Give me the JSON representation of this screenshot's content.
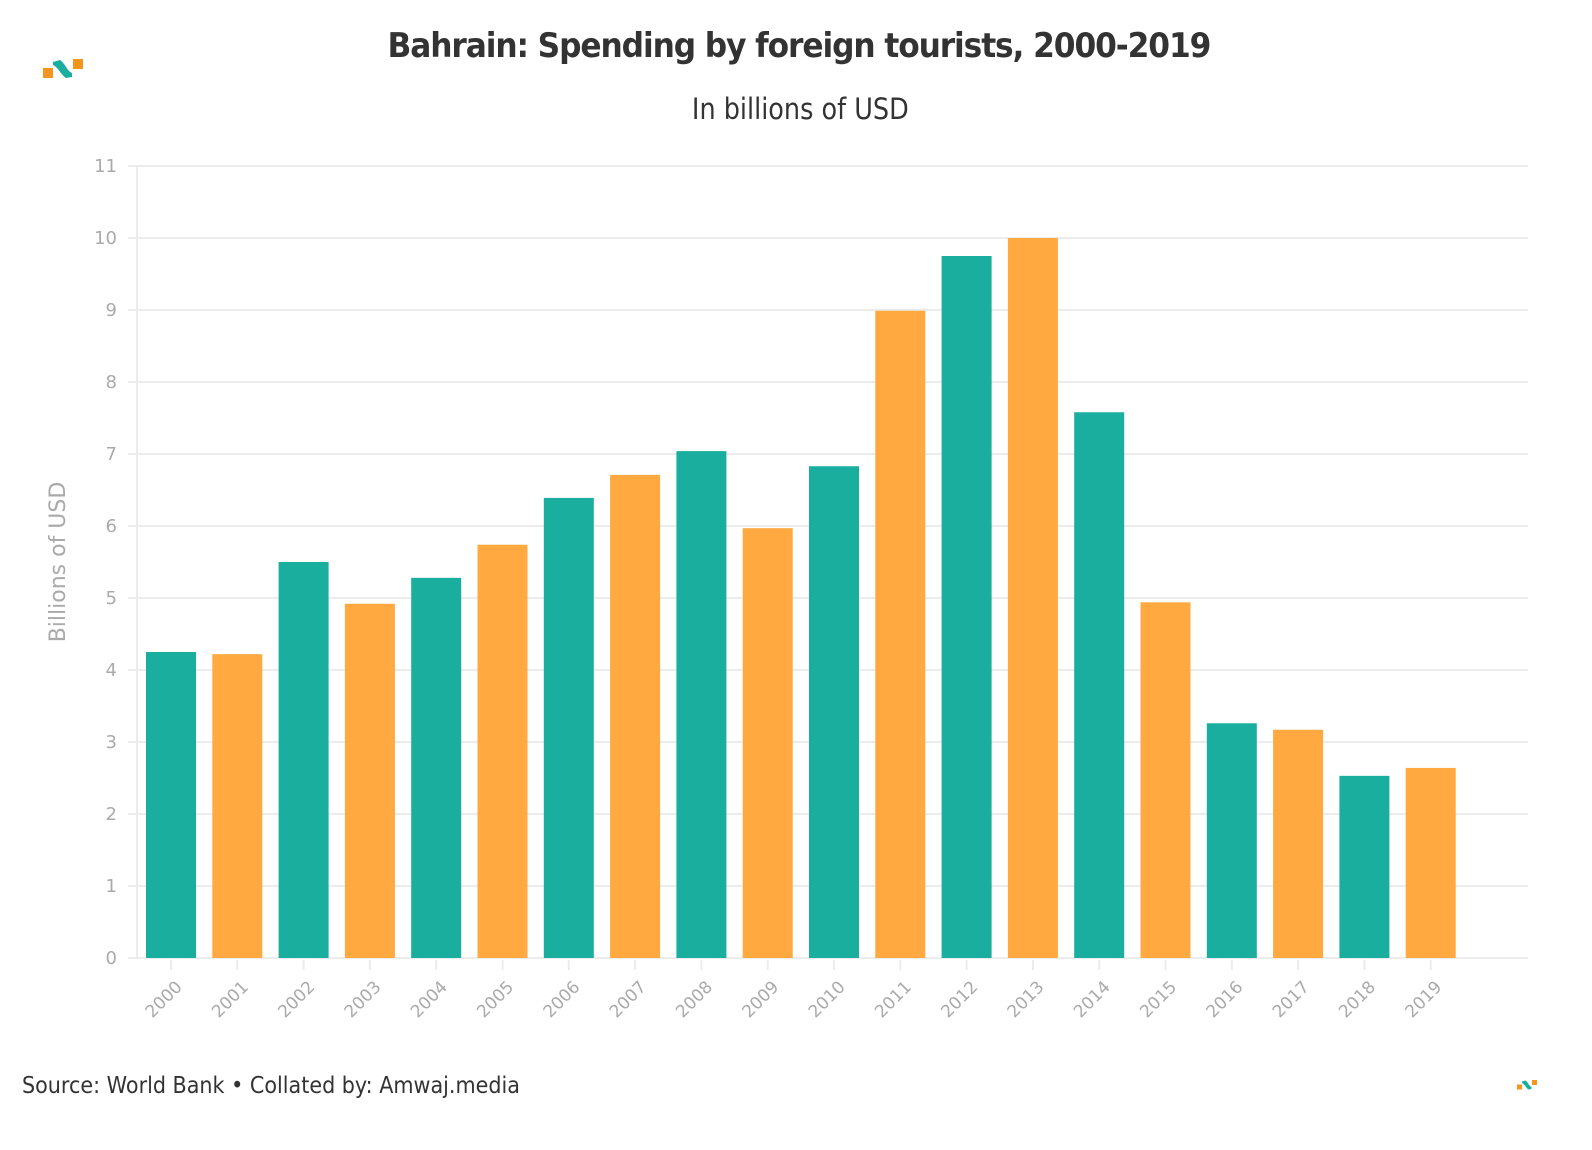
{
  "chart_data": {
    "type": "bar",
    "title": "Bahrain: Spending by foreign tourists, 2000-2019",
    "subtitle": "In billions of USD",
    "xlabel": "",
    "ylabel": "Billions of USD",
    "ylim": [
      0,
      11
    ],
    "yticks": [
      "0",
      "1",
      "2",
      "3",
      "4",
      "5",
      "6",
      "7",
      "8",
      "9",
      "10",
      "11"
    ],
    "grid": true,
    "categories": [
      "2000",
      "2001",
      "2002",
      "2003",
      "2004",
      "2005",
      "2006",
      "2007",
      "2008",
      "2009",
      "2010",
      "2011",
      "2012",
      "2013",
      "2014",
      "2015",
      "2016",
      "2017",
      "2018",
      "2019"
    ],
    "values": [
      4.25,
      4.22,
      5.5,
      4.92,
      5.28,
      5.74,
      6.39,
      6.71,
      7.04,
      5.97,
      6.83,
      8.99,
      9.75,
      10.0,
      7.58,
      4.94,
      3.26,
      3.17,
      2.53,
      2.64
    ],
    "colors": [
      "#1aae9f",
      "#ffa940"
    ]
  },
  "footer": {
    "source": "Source: World Bank • Collated by: Amwaj.media"
  },
  "brand": {
    "logo_icon": "amwaj-logo-icon",
    "teal": "#1aae9f",
    "orange": "#ffa940"
  }
}
